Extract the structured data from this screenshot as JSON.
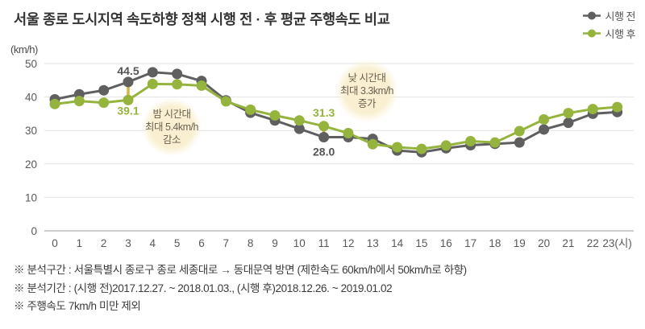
{
  "title": "서울 종로 도시지역 속도하향 정책 시행 전 · 후 평균 주행속도 비교",
  "y_axis_unit": "(km/h)",
  "legend": [
    {
      "label": "시행 전",
      "color": "#5f5f5f"
    },
    {
      "label": "시행 후",
      "color": "#94b43e"
    }
  ],
  "chart_data": {
    "type": "line",
    "x": [
      0,
      1,
      2,
      3,
      4,
      5,
      6,
      7,
      8,
      9,
      10,
      11,
      12,
      13,
      14,
      15,
      16,
      17,
      18,
      19,
      20,
      21,
      22,
      23
    ],
    "x_tick_labels": [
      "0",
      "1",
      "2",
      "3",
      "4",
      "5",
      "6",
      "7",
      "8",
      "9",
      "10",
      "11",
      "12",
      "13",
      "14",
      "15",
      "16",
      "17",
      "18",
      "19",
      "20",
      "21",
      "22",
      "23(시)"
    ],
    "y_ticks": [
      0,
      10,
      20,
      30,
      40,
      50
    ],
    "ylim": [
      0,
      50
    ],
    "ylabel": "(km/h)",
    "xlabel": "시",
    "grid": true,
    "legend_position": "top-right",
    "series": [
      {
        "name": "시행 전",
        "color": "#5f5f5f",
        "values": [
          39.3,
          40.8,
          42.0,
          44.5,
          47.4,
          46.9,
          44.8,
          39.0,
          35.3,
          33.0,
          30.5,
          28.0,
          28.0,
          27.5,
          24.0,
          23.5,
          24.7,
          25.6,
          26.0,
          26.4,
          30.3,
          32.3,
          35.0,
          35.5
        ]
      },
      {
        "name": "시행 후",
        "color": "#94b43e",
        "values": [
          37.9,
          38.8,
          38.3,
          39.1,
          43.9,
          43.8,
          43.4,
          38.7,
          36.2,
          34.5,
          33.0,
          31.3,
          29.2,
          25.9,
          25.0,
          24.5,
          25.5,
          26.8,
          26.4,
          29.8,
          33.3,
          35.2,
          36.4,
          37.0
        ]
      }
    ],
    "point_labels": [
      {
        "text": "44.5",
        "hour": 3,
        "value": 44.5,
        "color": "#555555",
        "dy": -9
      },
      {
        "text": "39.1",
        "hour": 3,
        "value": 39.1,
        "color": "#94b43e",
        "dy": 18
      },
      {
        "text": "31.3",
        "hour": 11,
        "value": 31.3,
        "color": "#94b43e",
        "dy": -12
      },
      {
        "text": "28.0",
        "hour": 11,
        "value": 28.0,
        "color": "#555555",
        "dy": 23
      }
    ],
    "highlights": [
      {
        "hour": 3,
        "from": 44.5,
        "to": 39.1,
        "color": "#dcb33e"
      },
      {
        "hour": 11,
        "from": 31.3,
        "to": 28.0,
        "color": "#dcb33e"
      }
    ]
  },
  "annotations": {
    "bubble_color": "#faf0d1",
    "night": {
      "lines": [
        "밤 시간대",
        "최대 5.4km/h",
        "감소"
      ]
    },
    "day": {
      "lines": [
        "낮 시간대",
        "최대 3.3km/h",
        "증가"
      ]
    }
  },
  "footnotes": [
    "※ 분석구간 : 서울특별시 종로구 종로 세종대로 → 동대문역 방면 (제한속도 60km/h에서 50km/h로 하향)",
    "※ 분석기간 : (시행 전)2017.12.27. ~ 2018.01.03., (시행 후)2018.12.26. ~ 2019.01.02",
    "※ 주행속도 7km/h 미만 제외"
  ]
}
